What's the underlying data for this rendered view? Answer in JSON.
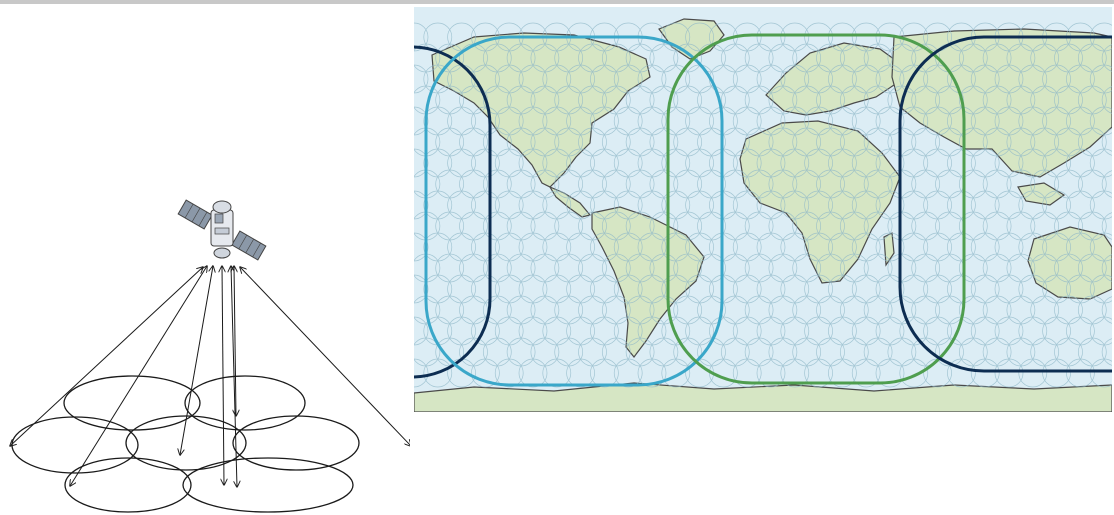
{
  "figure": {
    "left_panel": {
      "description_kind": "satellite multi-spot-beam diagram",
      "icon": "satellite-icon",
      "beam_count": 7
    },
    "right_panel": {
      "description_kind": "world map with spot-beam coverage regions",
      "coverage_regions": [
        {
          "name": "americas",
          "color": "#3aa7c9"
        },
        {
          "name": "europe-africa",
          "color": "#4f9e4f"
        },
        {
          "name": "asia-pacific",
          "color": "#0d2d52"
        }
      ],
      "colors": {
        "ocean": "#dcedf5",
        "land": "#d6e6c4",
        "coastline": "#4a4a4a",
        "beam_grid": "#8fb8c8"
      }
    }
  }
}
